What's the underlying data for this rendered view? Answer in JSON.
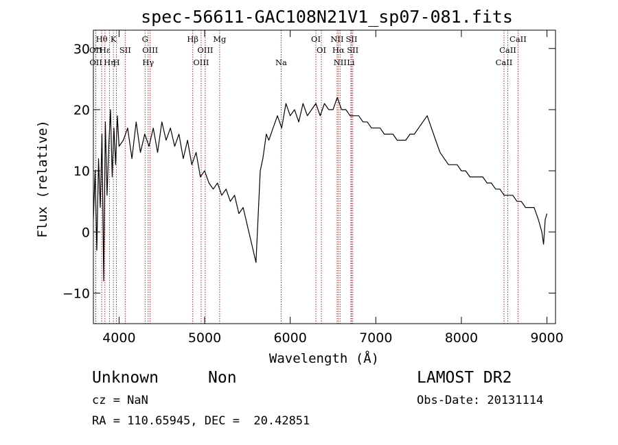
{
  "chart_data": {
    "type": "line",
    "title": "spec-56611-GAC108N21V1_sp07-081.fits",
    "xlabel": "Wavelength (Å)",
    "ylabel": "Flux (relative)",
    "xlim": [
      3700,
      9100
    ],
    "ylim": [
      -15,
      33
    ],
    "xticks": [
      4000,
      5000,
      6000,
      7000,
      8000,
      9000
    ],
    "yticks": [
      -10,
      0,
      10,
      20,
      30
    ],
    "line_color": "#000000",
    "marker_color": "#b22222",
    "series": [
      {
        "x": [
          3700,
          3720,
          3740,
          3760,
          3780,
          3800,
          3820,
          3840,
          3860,
          3880,
          3900,
          3920,
          3940,
          3960,
          3980,
          4000,
          4050,
          4100,
          4150,
          4200,
          4250,
          4300,
          4350,
          4400,
          4450,
          4500,
          4550,
          4600,
          4650,
          4700,
          4750,
          4800,
          4850,
          4900,
          4950,
          5000,
          5050,
          5100,
          5150,
          5200,
          5250,
          5300,
          5350,
          5400,
          5450,
          5500,
          5550,
          5600,
          5650,
          5680,
          5700,
          5720,
          5750,
          5800,
          5850,
          5900,
          5950,
          6000,
          6050,
          6100,
          6150,
          6200,
          6250,
          6300,
          6350,
          6400,
          6450,
          6500,
          6550,
          6600,
          6650,
          6700,
          6750,
          6800,
          6850,
          6900,
          6950,
          7000,
          7050,
          7100,
          7150,
          7200,
          7250,
          7300,
          7350,
          7400,
          7450,
          7500,
          7550,
          7600,
          7650,
          7700,
          7750,
          7800,
          7850,
          7900,
          7950,
          8000,
          8050,
          8100,
          8150,
          8200,
          8250,
          8300,
          8350,
          8400,
          8450,
          8500,
          8550,
          8600,
          8650,
          8700,
          8750,
          8800,
          8850,
          8900,
          8940,
          8960,
          8980,
          9000
        ],
        "y": [
          2,
          10,
          -3,
          12,
          4,
          16,
          -8,
          18,
          6,
          14,
          20,
          9,
          17,
          11,
          19,
          14,
          15,
          17,
          12,
          18,
          13,
          16,
          14,
          17,
          13,
          18,
          15,
          17,
          14,
          16,
          12,
          15,
          11,
          13,
          9,
          10,
          8,
          7,
          8,
          6,
          7,
          5,
          6,
          3,
          4,
          1,
          -2,
          -5,
          10,
          12,
          14,
          16,
          15,
          17,
          19,
          17,
          21,
          19,
          20,
          18,
          21,
          19,
          20,
          21,
          19,
          21,
          20,
          20,
          22,
          20,
          20,
          19,
          19,
          19,
          18,
          18,
          17,
          17,
          17,
          16,
          16,
          16,
          15,
          15,
          15,
          16,
          16,
          17,
          18,
          19,
          17,
          15,
          13,
          12,
          11,
          11,
          11,
          10,
          10,
          9,
          9,
          9,
          9,
          8,
          8,
          7,
          7,
          6,
          6,
          6,
          5,
          5,
          4,
          4,
          4,
          2,
          0,
          -2,
          2,
          3
        ]
      }
    ],
    "lines": [
      {
        "label": "Hθ",
        "x": 3797,
        "row": 1
      },
      {
        "label": "OII",
        "x": 3727,
        "row": 2
      },
      {
        "label": "OII",
        "x": 3729,
        "row": 3
      },
      {
        "label": "Hε",
        "x": 3835,
        "row": 2
      },
      {
        "label": "Hη",
        "x": 3889,
        "row": 3
      },
      {
        "label": "K",
        "x": 3934,
        "row": 1
      },
      {
        "label": "H",
        "x": 3969,
        "row": 3
      },
      {
        "label": "SII",
        "x": 4072,
        "row": 2
      },
      {
        "label": "G",
        "x": 4304,
        "row": 1
      },
      {
        "label": "OIII",
        "x": 4363,
        "row": 2
      },
      {
        "label": "Hγ",
        "x": 4340,
        "row": 3
      },
      {
        "label": "Hβ",
        "x": 4861,
        "row": 1
      },
      {
        "label": "OIII",
        "x": 5007,
        "row": 2
      },
      {
        "label": "OIII",
        "x": 4959,
        "row": 3
      },
      {
        "label": "Mg",
        "x": 5175,
        "row": 1
      },
      {
        "label": "Na",
        "x": 5894,
        "row": 3
      },
      {
        "label": "OI",
        "x": 6300,
        "row": 1
      },
      {
        "label": "OI",
        "x": 6364,
        "row": 2
      },
      {
        "label": "NII",
        "x": 6548,
        "row": 1
      },
      {
        "label": "NII",
        "x": 6583,
        "row": 3
      },
      {
        "label": "Hα",
        "x": 6563,
        "row": 2
      },
      {
        "label": "SII",
        "x": 6717,
        "row": 1
      },
      {
        "label": "SII",
        "x": 6731,
        "row": 2
      },
      {
        "label": "Li",
        "x": 6708,
        "row": 3
      },
      {
        "label": "CaII",
        "x": 8662,
        "row": 1
      },
      {
        "label": "CaII",
        "x": 8542,
        "row": 2
      },
      {
        "label": "CaII",
        "x": 8498,
        "row": 3
      }
    ]
  },
  "info": {
    "class": "Unknown",
    "subclass": "Non",
    "survey": "LAMOST DR2",
    "redshift": "cz = NaN",
    "obs_date": "Obs-Date: 20131114",
    "coords": "RA = 110.65945, DEC =  20.42851"
  }
}
